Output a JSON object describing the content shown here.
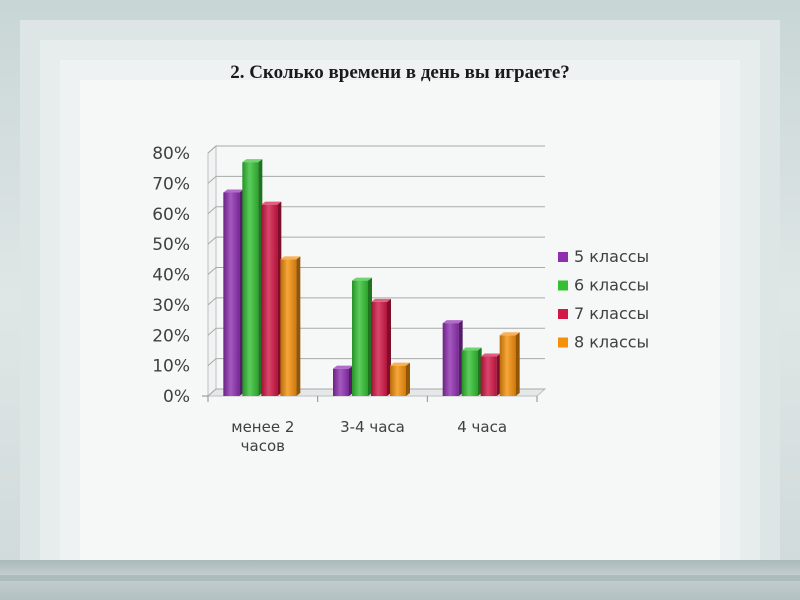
{
  "chart_data": {
    "type": "bar",
    "title": "2. Сколько времени в день вы играете?",
    "categories": [
      [
        "менее 2",
        "часов"
      ],
      [
        "3-4 часа"
      ],
      [
        "4 часа"
      ]
    ],
    "series": [
      {
        "name": "5 классы",
        "values": [
          0.67,
          0.09,
          0.24
        ],
        "color": "#8e2fb0"
      },
      {
        "name": "6 классы",
        "values": [
          0.77,
          0.38,
          0.15
        ],
        "color": "#33c133"
      },
      {
        "name": "7 классы",
        "values": [
          0.63,
          0.31,
          0.13
        ],
        "color": "#d21846"
      },
      {
        "name": "8 классы",
        "values": [
          0.45,
          0.1,
          0.2
        ],
        "color": "#f5900a"
      }
    ],
    "ylim": [
      0,
      0.8
    ],
    "yticks": [
      "0%",
      "10%",
      "20%",
      "30%",
      "40%",
      "50%",
      "60%",
      "70%",
      "80%"
    ],
    "grid": true,
    "legend_position": "right"
  }
}
